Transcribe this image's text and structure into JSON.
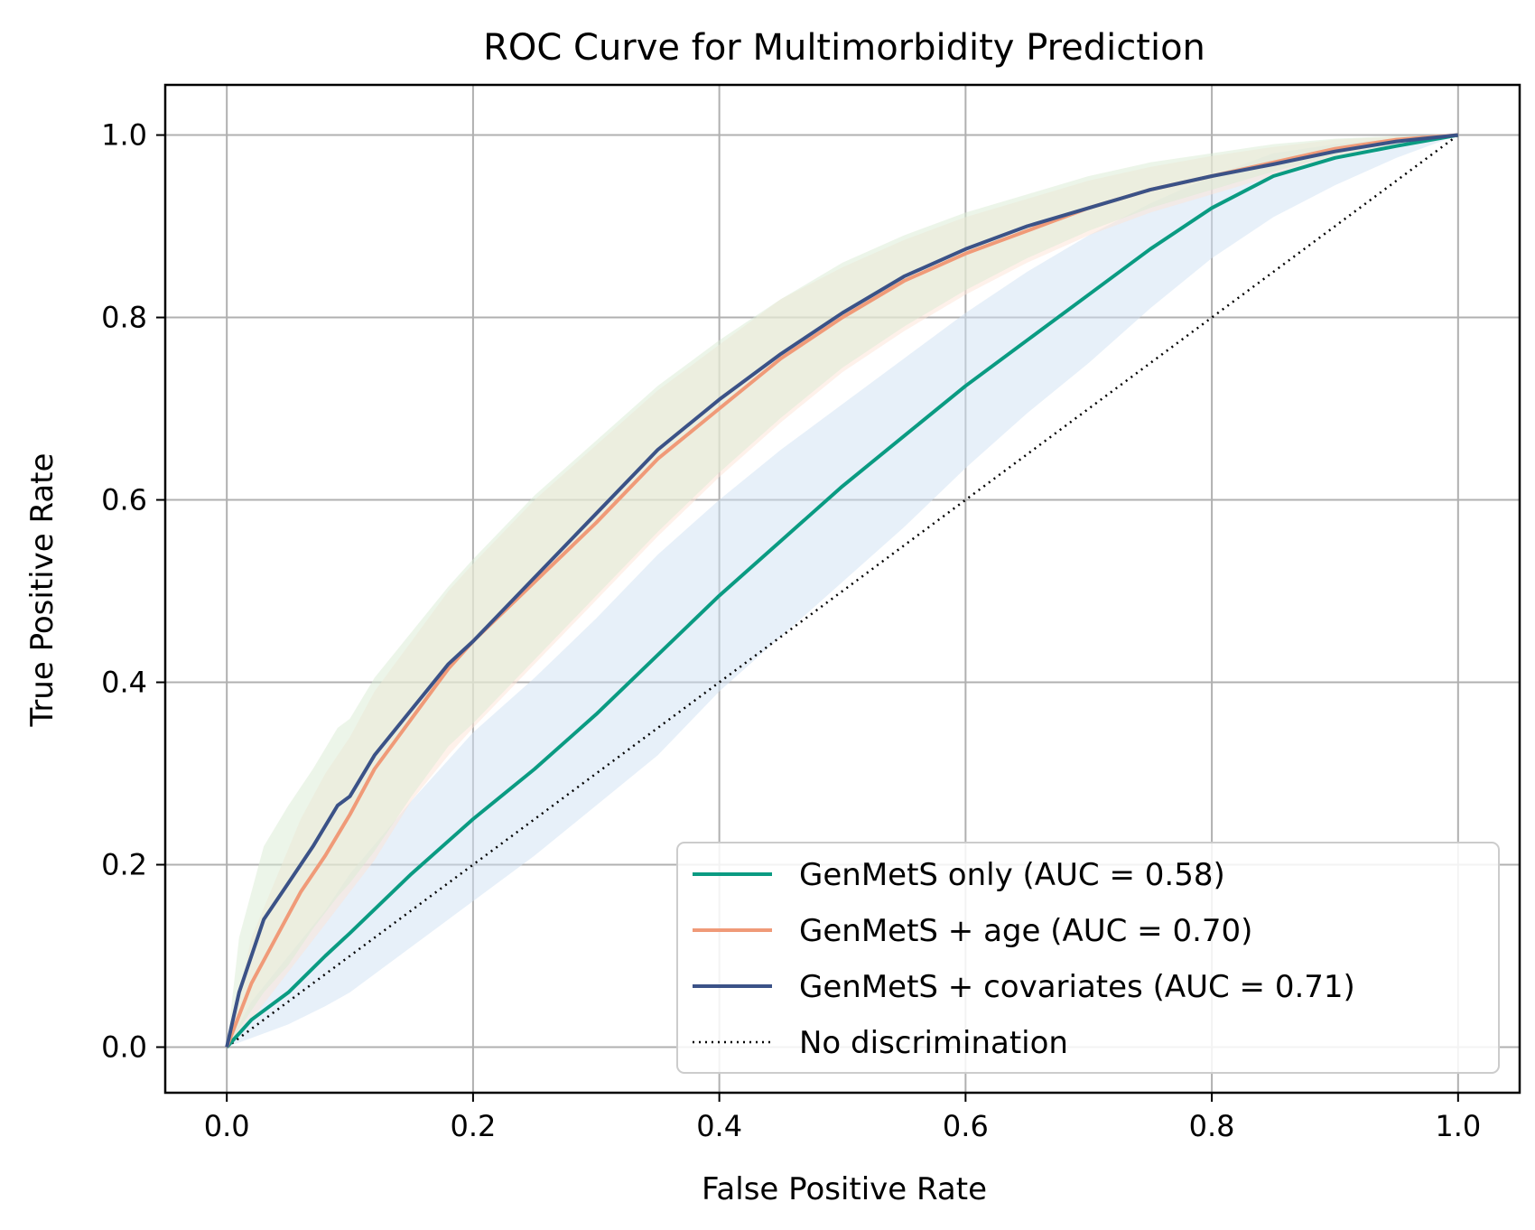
{
  "chart_data": {
    "type": "line",
    "title": "ROC Curve for Multimorbidity Prediction",
    "xlabel": "False Positive Rate",
    "ylabel": "True Positive Rate",
    "xlim": [
      -0.05,
      1.05
    ],
    "ylim": [
      -0.05,
      1.055
    ],
    "xticks": [
      0.0,
      0.2,
      0.4,
      0.6,
      0.8,
      1.0
    ],
    "yticks": [
      0.0,
      0.2,
      0.4,
      0.6,
      0.8,
      1.0
    ],
    "xtick_labels": [
      "0.0",
      "0.2",
      "0.4",
      "0.6",
      "0.8",
      "1.0"
    ],
    "ytick_labels": [
      "0.0",
      "0.2",
      "0.4",
      "0.6",
      "0.8",
      "1.0"
    ],
    "grid": true,
    "legend_position": "lower-right",
    "series": [
      {
        "name": "GenMetS only (AUC = 0.58)",
        "color": "#0a9b82",
        "band_color": "#cfe2f3",
        "x": [
          0.0,
          0.02,
          0.05,
          0.08,
          0.1,
          0.15,
          0.2,
          0.25,
          0.3,
          0.35,
          0.4,
          0.45,
          0.5,
          0.55,
          0.6,
          0.65,
          0.7,
          0.75,
          0.8,
          0.85,
          0.9,
          0.95,
          1.0
        ],
        "y": [
          0.0,
          0.03,
          0.06,
          0.1,
          0.125,
          0.19,
          0.25,
          0.305,
          0.365,
          0.43,
          0.495,
          0.555,
          0.615,
          0.67,
          0.725,
          0.775,
          0.825,
          0.875,
          0.92,
          0.955,
          0.975,
          0.988,
          1.0
        ],
        "lower": [
          0.0,
          0.01,
          0.025,
          0.045,
          0.06,
          0.11,
          0.16,
          0.21,
          0.265,
          0.32,
          0.39,
          0.45,
          0.51,
          0.57,
          0.635,
          0.695,
          0.75,
          0.81,
          0.865,
          0.91,
          0.945,
          0.975,
          1.0
        ],
        "upper": [
          0.0,
          0.05,
          0.1,
          0.15,
          0.19,
          0.27,
          0.345,
          0.405,
          0.47,
          0.54,
          0.6,
          0.655,
          0.705,
          0.755,
          0.805,
          0.85,
          0.89,
          0.925,
          0.955,
          0.98,
          0.99,
          0.996,
          1.0
        ]
      },
      {
        "name": "GenMetS + age (AUC = 0.70)",
        "color": "#f09a78",
        "band_color": "#fde3d6",
        "x": [
          0.0,
          0.02,
          0.04,
          0.06,
          0.08,
          0.1,
          0.12,
          0.15,
          0.18,
          0.2,
          0.25,
          0.3,
          0.35,
          0.4,
          0.45,
          0.5,
          0.55,
          0.6,
          0.65,
          0.7,
          0.75,
          0.8,
          0.85,
          0.9,
          0.95,
          1.0
        ],
        "y": [
          0.0,
          0.07,
          0.12,
          0.17,
          0.21,
          0.255,
          0.305,
          0.36,
          0.415,
          0.445,
          0.51,
          0.575,
          0.645,
          0.7,
          0.755,
          0.8,
          0.84,
          0.87,
          0.895,
          0.92,
          0.94,
          0.955,
          0.97,
          0.985,
          0.995,
          1.0
        ],
        "lower": [
          0.0,
          0.03,
          0.065,
          0.1,
          0.135,
          0.17,
          0.205,
          0.27,
          0.32,
          0.35,
          0.42,
          0.49,
          0.56,
          0.625,
          0.685,
          0.74,
          0.785,
          0.825,
          0.86,
          0.89,
          0.915,
          0.935,
          0.955,
          0.975,
          0.99,
          1.0
        ],
        "upper": [
          0.0,
          0.12,
          0.185,
          0.25,
          0.3,
          0.34,
          0.39,
          0.445,
          0.5,
          0.53,
          0.6,
          0.66,
          0.72,
          0.77,
          0.82,
          0.855,
          0.885,
          0.91,
          0.93,
          0.95,
          0.965,
          0.977,
          0.987,
          0.995,
          0.998,
          1.0
        ]
      },
      {
        "name": "GenMetS + covariates (AUC = 0.71)",
        "color": "#3b5287",
        "band_color": "#d9ecd3",
        "x": [
          0.0,
          0.01,
          0.03,
          0.05,
          0.07,
          0.09,
          0.1,
          0.12,
          0.15,
          0.18,
          0.2,
          0.25,
          0.3,
          0.35,
          0.4,
          0.45,
          0.5,
          0.55,
          0.6,
          0.65,
          0.7,
          0.75,
          0.8,
          0.85,
          0.9,
          0.95,
          1.0
        ],
        "y": [
          0.0,
          0.06,
          0.14,
          0.18,
          0.22,
          0.265,
          0.275,
          0.32,
          0.37,
          0.42,
          0.445,
          0.515,
          0.585,
          0.655,
          0.71,
          0.76,
          0.805,
          0.845,
          0.875,
          0.9,
          0.92,
          0.94,
          0.955,
          0.968,
          0.982,
          0.993,
          1.0
        ],
        "lower": [
          0.0,
          0.02,
          0.06,
          0.09,
          0.13,
          0.165,
          0.18,
          0.215,
          0.275,
          0.33,
          0.355,
          0.425,
          0.495,
          0.565,
          0.63,
          0.69,
          0.745,
          0.79,
          0.83,
          0.865,
          0.895,
          0.92,
          0.94,
          0.96,
          0.978,
          0.99,
          1.0
        ],
        "upper": [
          0.0,
          0.12,
          0.22,
          0.265,
          0.305,
          0.35,
          0.36,
          0.405,
          0.455,
          0.505,
          0.535,
          0.605,
          0.665,
          0.725,
          0.775,
          0.82,
          0.86,
          0.89,
          0.915,
          0.935,
          0.955,
          0.97,
          0.98,
          0.99,
          0.996,
          0.999,
          1.0
        ]
      }
    ],
    "reference_line": {
      "name": "No discrimination",
      "color": "#000000",
      "style": "dotted",
      "x": [
        0.0,
        1.0
      ],
      "y": [
        0.0,
        1.0
      ]
    }
  }
}
